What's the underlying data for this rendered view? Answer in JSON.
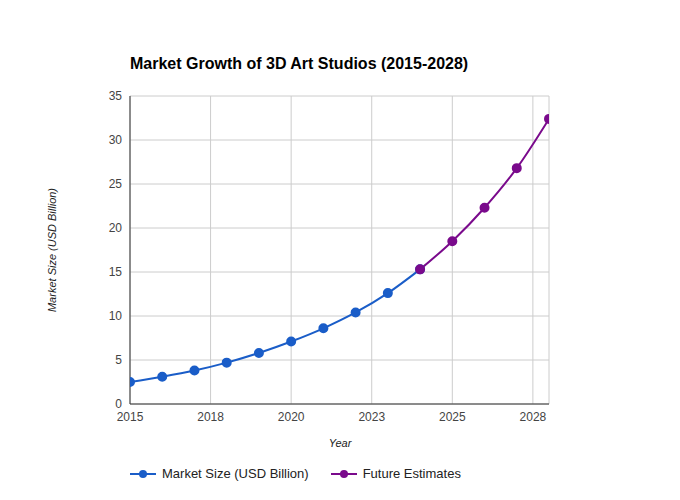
{
  "chart_data": {
    "type": "line",
    "title": "Market Growth of 3D Art Studios (2015-2028)",
    "x_label": "Year",
    "y_label": "Market Size (USD Billion)",
    "x": [
      2015,
      2016,
      2017,
      2018,
      2019,
      2020,
      2021,
      2022,
      2023,
      2024,
      2025,
      2026,
      2027,
      2028
    ],
    "series": [
      {
        "name": "Market Size (USD Billion)",
        "color": "#1a5dc8",
        "marker": "circle",
        "values": [
          2.5,
          3.1,
          3.8,
          4.7,
          5.8,
          7.1,
          8.6,
          10.4,
          12.6,
          15.3,
          null,
          null,
          null,
          null
        ]
      },
      {
        "name": "Future Estimates",
        "color": "#7a0a8c",
        "marker": "circle",
        "values": [
          null,
          null,
          null,
          null,
          null,
          null,
          null,
          null,
          null,
          15.3,
          18.5,
          22.3,
          26.8,
          32.4
        ]
      }
    ],
    "xlim": [
      2015,
      2028
    ],
    "xticks": [
      2015,
      {
        "value": 2017.5,
        "label": "2018"
      },
      2020,
      {
        "value": 2022.5,
        "label": "2023"
      },
      2025,
      {
        "value": 2027.5,
        "label": "2028"
      }
    ],
    "ylim": [
      0,
      35
    ],
    "yticks": [
      0,
      5,
      10,
      15,
      20,
      25,
      30,
      35
    ],
    "grid": true,
    "legend": "bottom"
  }
}
